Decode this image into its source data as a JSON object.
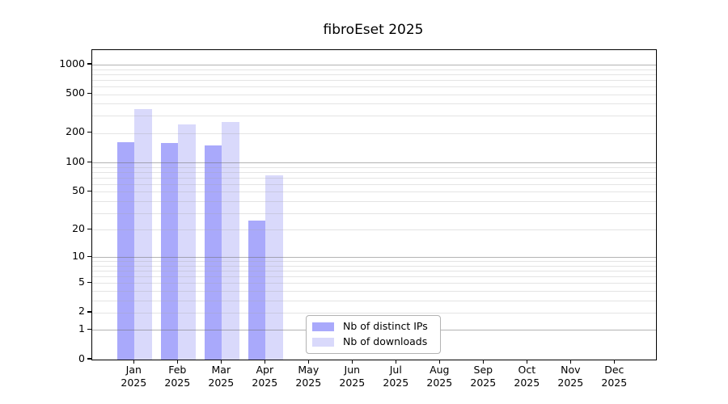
{
  "figure": {
    "background": "#ffffff",
    "frame_color": "#000000"
  },
  "chart_data": {
    "type": "bar",
    "title": "fibroEset 2025",
    "year_label": "2025",
    "categories": [
      "Jan",
      "Feb",
      "Mar",
      "Apr",
      "May",
      "Jun",
      "Jul",
      "Aug",
      "Sep",
      "Oct",
      "Nov",
      "Dec"
    ],
    "series": [
      {
        "key": "distinct-ips",
        "name": "Nb of distinct IPs",
        "color": "#a9a9fb",
        "values": [
          162,
          160,
          150,
          25,
          null,
          null,
          null,
          null,
          null,
          null,
          null,
          null
        ]
      },
      {
        "key": "downloads",
        "name": "Nb of downloads",
        "color": "#d9d9fb",
        "values": [
          350,
          247,
          260,
          74,
          null,
          null,
          null,
          null,
          null,
          null,
          null,
          null
        ]
      }
    ],
    "xlabel": "",
    "ylabel": "",
    "y_axis": {
      "scale": "log1p",
      "tick_values": [
        0,
        1,
        2,
        5,
        10,
        20,
        50,
        100,
        200,
        500,
        1000
      ],
      "top_value": 1000
    },
    "grid": {
      "on": true,
      "major_values": [
        1,
        10,
        100,
        1000
      ],
      "major_color": "#b5b5b5",
      "minor_color": "#e7e7e7"
    },
    "legend": {
      "position": "inside-bottom-center",
      "entries": [
        "Nb of distinct IPs",
        "Nb of downloads"
      ]
    }
  }
}
